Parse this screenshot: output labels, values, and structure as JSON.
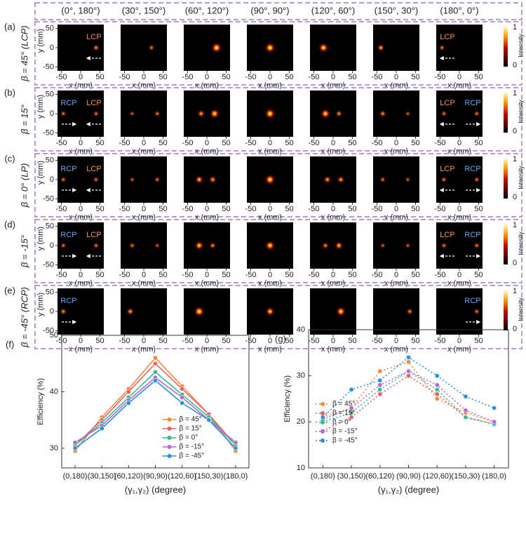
{
  "columns": [
    "(0°, 180°)",
    "(30°, 150°)",
    "(60°, 120°)",
    "(90°, 90°)",
    "(120°, 60°)",
    "(150°, 30°)",
    "(180°, 0°)"
  ],
  "rows": [
    {
      "label": "(a)",
      "beta": "β = 45° (LCP)",
      "first": [
        "LCP"
      ],
      "last": [
        "LCP"
      ]
    },
    {
      "label": "(b)",
      "beta": "β = 15°",
      "first": [
        "RCP",
        "LCP"
      ],
      "last": [
        "LCP",
        "RCP"
      ]
    },
    {
      "label": "(c)",
      "beta": "β = 0° (LP)",
      "first": [
        "RCP",
        "LCP"
      ],
      "last": [
        "LCP",
        "RCP"
      ]
    },
    {
      "label": "(d)",
      "beta": "β = -15°",
      "first": [
        "RCP",
        "LCP"
      ],
      "last": [
        "LCP",
        "RCP"
      ]
    },
    {
      "label": "(e)",
      "beta": "β = -45° (RCP)",
      "first": [
        "RCP"
      ],
      "last": [
        "RCP"
      ]
    }
  ],
  "heatmap_axes": {
    "xlim": [
      -60,
      60
    ],
    "ylim": [
      -60,
      60
    ],
    "xticks": [
      -50,
      0,
      50
    ],
    "yticks": [
      50,
      0,
      -50
    ],
    "xlabel": "x (mm)",
    "ylabel": "y (mm)"
  },
  "colorbar": {
    "ticks": [
      1,
      0
    ],
    "label": "Intensity"
  },
  "chart_data": [
    {
      "type": "line",
      "panel": "(f)",
      "ylabel": "Efficiency (%)",
      "xlabel": "(γ₁,γ₂) (degree)",
      "categories": [
        "(0,180)",
        "(30,150)",
        "(60,120)",
        "(90,90)",
        "(120,60)",
        "(150,30)",
        "(180,0)"
      ],
      "ylim": [
        26.5,
        50
      ],
      "yticks": [
        30,
        40,
        50
      ],
      "line_style": "solid",
      "legend": "lower center",
      "series": [
        {
          "name": "β = 45°",
          "color": "#f08a3c",
          "values": [
            29.5,
            35.5,
            40.5,
            46,
            41,
            36,
            29.5
          ]
        },
        {
          "name": "β = 15°",
          "color": "#e8606a",
          "values": [
            30.5,
            35,
            40,
            45,
            40.5,
            36,
            30.5
          ]
        },
        {
          "name": "β = 0°",
          "color": "#2ec27e",
          "values": [
            30.5,
            34.5,
            39,
            43.5,
            39.5,
            35.5,
            30.5
          ]
        },
        {
          "name": "β = -15°",
          "color": "#b866d9",
          "values": [
            31,
            34,
            38.5,
            42.5,
            39,
            35,
            31
          ]
        },
        {
          "name": "β = -45°",
          "color": "#2c8fe0",
          "values": [
            30,
            33.5,
            38,
            42,
            38,
            35,
            30
          ]
        }
      ]
    },
    {
      "type": "line",
      "panel": "(g)",
      "ylabel": "Efficiency (%)",
      "xlabel": "(γ₁,γ₂) (degree)",
      "categories": [
        "(0,180)",
        "(30,150)",
        "(60,120)",
        "(90,90)",
        "(120,60)",
        "(150,30)",
        "(180,0)"
      ],
      "ylim": [
        10,
        40
      ],
      "yticks": [
        10,
        20,
        30,
        40
      ],
      "line_style": "dotted",
      "legend": "center left",
      "series": [
        {
          "name": "β = 45°",
          "color": "#f08a3c",
          "values": [
            21,
            23,
            31,
            33,
            25,
            22,
            20
          ]
        },
        {
          "name": "β = 15°",
          "color": "#e8606a",
          "values": [
            18,
            21,
            26,
            30,
            26,
            21,
            19.5
          ]
        },
        {
          "name": "β = 0°",
          "color": "#2ec27e",
          "values": [
            20,
            22,
            27,
            31,
            27,
            21,
            19.5
          ]
        },
        {
          "name": "β = -15°",
          "color": "#b866d9",
          "values": [
            20.5,
            23,
            28,
            31,
            28,
            22.5,
            20
          ]
        },
        {
          "name": "β = -45°",
          "color": "#2c8fe0",
          "values": [
            21,
            27,
            29,
            34,
            30,
            25.5,
            23
          ]
        }
      ]
    }
  ]
}
